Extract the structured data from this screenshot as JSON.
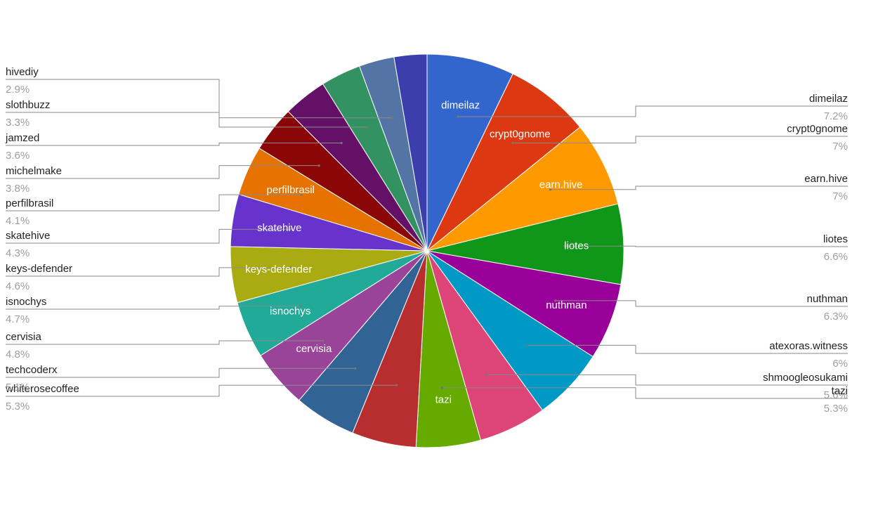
{
  "chart_data": {
    "type": "pie",
    "title": "",
    "legend": "none",
    "slices": [
      {
        "label": "dimeilaz",
        "value": 7.2,
        "display": "7.2%",
        "color": "#3366cc",
        "inside_label": true
      },
      {
        "label": "crypt0gnome",
        "value": 7.0,
        "display": "7%",
        "color": "#dc3912",
        "inside_label": true
      },
      {
        "label": "earn.hive",
        "value": 7.0,
        "display": "7%",
        "color": "#ff9900",
        "inside_label": true
      },
      {
        "label": "liotes",
        "value": 6.6,
        "display": "6.6%",
        "color": "#109618",
        "inside_label": true
      },
      {
        "label": "nuthman",
        "value": 6.3,
        "display": "6.3%",
        "color": "#990099",
        "inside_label": true
      },
      {
        "label": "atexoras.witness",
        "value": 6.0,
        "display": "6%",
        "color": "#0099c6",
        "inside_label": false
      },
      {
        "label": "shmoogleosukami",
        "value": 5.6,
        "display": "5.6%",
        "color": "#dd4477",
        "inside_label": false
      },
      {
        "label": "tazi",
        "value": 5.3,
        "display": "5.3%",
        "color": "#66aa00",
        "inside_label": true
      },
      {
        "label": "whiterosecoffee",
        "value": 5.3,
        "display": "5.3%",
        "color": "#b82e2e",
        "inside_label": false
      },
      {
        "label": "techcoderx",
        "value": 5.1,
        "display": "5.1%",
        "color": "#316395",
        "inside_label": false
      },
      {
        "label": "cervisia",
        "value": 4.8,
        "display": "4.8%",
        "color": "#994499",
        "inside_label": true
      },
      {
        "label": "isnochys",
        "value": 4.7,
        "display": "4.7%",
        "color": "#22aa99",
        "inside_label": true
      },
      {
        "label": "keys-defender",
        "value": 4.6,
        "display": "4.6%",
        "color": "#aaaa11",
        "inside_label": true
      },
      {
        "label": "skatehive",
        "value": 4.3,
        "display": "4.3%",
        "color": "#6633cc",
        "inside_label": true
      },
      {
        "label": "perfilbrasil",
        "value": 4.1,
        "display": "4.1%",
        "color": "#e67300",
        "inside_label": true
      },
      {
        "label": "michelmake",
        "value": 3.8,
        "display": "3.8%",
        "color": "#8b0707",
        "inside_label": false
      },
      {
        "label": "jamzed",
        "value": 3.6,
        "display": "3.6%",
        "color": "#651067",
        "inside_label": false
      },
      {
        "label": "slothbuzz",
        "value": 3.3,
        "display": "3.3%",
        "color": "#329262",
        "inside_label": false
      },
      {
        "label": "hivediy",
        "value": 2.9,
        "display": "2.9%",
        "color": "#5574a6",
        "inside_label": false
      },
      {
        "label": "",
        "value": 2.7,
        "display": "",
        "color": "#3b3eac",
        "inside_label": false
      }
    ]
  }
}
